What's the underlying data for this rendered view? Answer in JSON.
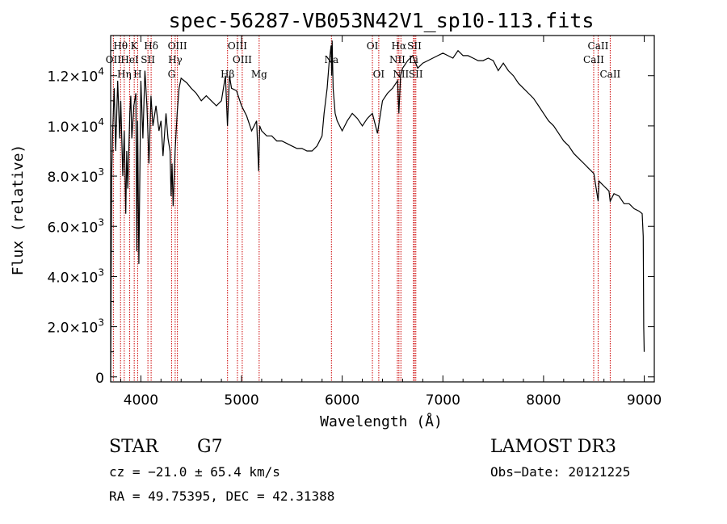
{
  "chart_data": {
    "type": "line",
    "title": "spec-56287-VB053N42V1_sp10-113.fits",
    "xlabel": "Wavelength (Å)",
    "ylabel": "Flux (relative)",
    "xlim": [
      3700,
      9100
    ],
    "ylim": [
      -200,
      13600
    ],
    "xticks": [
      {
        "value": 4000,
        "label": "4000"
      },
      {
        "value": 5000,
        "label": "5000"
      },
      {
        "value": 6000,
        "label": "6000"
      },
      {
        "value": 7000,
        "label": "7000"
      },
      {
        "value": 8000,
        "label": "8000"
      },
      {
        "value": 9000,
        "label": "9000"
      }
    ],
    "yticks": [
      {
        "value": 0,
        "mant": "0",
        "exp": ""
      },
      {
        "value": 2000,
        "mant": "2.0×10",
        "exp": "3"
      },
      {
        "value": 4000,
        "mant": "4.0×10",
        "exp": "3"
      },
      {
        "value": 6000,
        "mant": "6.0×10",
        "exp": "3"
      },
      {
        "value": 8000,
        "mant": "8.0×10",
        "exp": "3"
      },
      {
        "value": 10000,
        "mant": "1.0×10",
        "exp": "4"
      },
      {
        "value": 12000,
        "mant": "1.2×10",
        "exp": "4"
      }
    ],
    "series": [
      {
        "name": "flux",
        "x": [
          3700,
          3710,
          3720,
          3735,
          3750,
          3770,
          3790,
          3800,
          3820,
          3835,
          3850,
          3860,
          3870,
          3890,
          3900,
          3910,
          3930,
          3950,
          3960,
          3968,
          3980,
          4000,
          4020,
          4040,
          4060,
          4080,
          4100,
          4120,
          4150,
          4180,
          4200,
          4220,
          4250,
          4270,
          4290,
          4300,
          4310,
          4320,
          4340,
          4360,
          4380,
          4400,
          4430,
          4460,
          4500,
          4550,
          4600,
          4650,
          4700,
          4750,
          4800,
          4840,
          4860,
          4880,
          4900,
          4950,
          5000,
          5050,
          5100,
          5150,
          5170,
          5180,
          5200,
          5250,
          5300,
          5350,
          5400,
          5450,
          5500,
          5550,
          5600,
          5650,
          5700,
          5750,
          5800,
          5820,
          5850,
          5870,
          5890,
          5895,
          5900,
          5910,
          5930,
          5950,
          6000,
          6050,
          6100,
          6150,
          6200,
          6250,
          6300,
          6350,
          6400,
          6450,
          6500,
          6550,
          6563,
          6580,
          6600,
          6650,
          6700,
          6750,
          6800,
          6850,
          6900,
          6950,
          7000,
          7050,
          7100,
          7150,
          7200,
          7250,
          7300,
          7350,
          7400,
          7450,
          7500,
          7550,
          7600,
          7650,
          7700,
          7750,
          7800,
          7850,
          7900,
          7950,
          8000,
          8050,
          8100,
          8150,
          8200,
          8250,
          8300,
          8350,
          8400,
          8450,
          8500,
          8542,
          8550,
          8600,
          8650,
          8662,
          8700,
          8750,
          8800,
          8850,
          8900,
          8950,
          8980,
          8990,
          8995,
          9000
        ],
        "y": [
          0,
          8000,
          9800,
          11500,
          9000,
          11800,
          9500,
          11000,
          8000,
          9800,
          6500,
          9000,
          7500,
          10500,
          11200,
          9500,
          10800,
          11300,
          5000,
          10200,
          4500,
          11800,
          9500,
          12200,
          10800,
          8500,
          11200,
          10000,
          10800,
          9800,
          10200,
          8800,
          10500,
          9500,
          9000,
          7200,
          8500,
          6800,
          9000,
          10500,
          11500,
          11900,
          11800,
          11700,
          11500,
          11300,
          11000,
          11200,
          11000,
          10800,
          11000,
          12000,
          10000,
          12000,
          11500,
          11400,
          10800,
          10400,
          9800,
          10200,
          8200,
          10000,
          9800,
          9600,
          9600,
          9400,
          9400,
          9300,
          9200,
          9100,
          9100,
          9000,
          9000,
          9200,
          9600,
          10500,
          11500,
          12500,
          13200,
          12000,
          13400,
          11500,
          10500,
          10200,
          9800,
          10200,
          10500,
          10300,
          10000,
          10300,
          10500,
          9700,
          11000,
          11300,
          11500,
          11800,
          10500,
          12000,
          12300,
          12600,
          12800,
          12300,
          12500,
          12600,
          12700,
          12800,
          12900,
          12800,
          12700,
          13000,
          12800,
          12800,
          12700,
          12600,
          12600,
          12700,
          12600,
          12200,
          12500,
          12200,
          12000,
          11700,
          11500,
          11300,
          11100,
          10800,
          10500,
          10200,
          10000,
          9700,
          9400,
          9200,
          8900,
          8700,
          8500,
          8300,
          8100,
          7000,
          7800,
          7600,
          7400,
          7000,
          7300,
          7200,
          6900,
          6900,
          6700,
          6600,
          6500,
          5600,
          2000,
          1000
        ]
      }
    ],
    "lines": [
      {
        "name": "Hθ",
        "x": 3798,
        "row": 0
      },
      {
        "name": "OII",
        "x": 3727,
        "row": 1
      },
      {
        "name": "Hη",
        "x": 3835,
        "row": 2
      },
      {
        "name": "K",
        "x": 3934,
        "row": 0
      },
      {
        "name": "HeI",
        "x": 3889,
        "row": 1
      },
      {
        "name": "SII",
        "x": 4070,
        "row": 1
      },
      {
        "name": "H",
        "x": 3968,
        "row": 2
      },
      {
        "name": "Hδ",
        "x": 4102,
        "row": 0
      },
      {
        "name": "OIII",
        "x": 4363,
        "row": 0
      },
      {
        "name": "Hγ",
        "x": 4341,
        "row": 1
      },
      {
        "name": "G",
        "x": 4305,
        "row": 2
      },
      {
        "name": "Hβ",
        "x": 4861,
        "row": 2
      },
      {
        "name": "OIII",
        "x": 4959,
        "row": 0
      },
      {
        "name": "OIII",
        "x": 5007,
        "row": 1
      },
      {
        "name": "Mg",
        "x": 5175,
        "row": 2
      },
      {
        "name": "Na",
        "x": 5893,
        "row": 1
      },
      {
        "name": "OI",
        "x": 6300,
        "row": 0
      },
      {
        "name": "OI",
        "x": 6363,
        "row": 2
      },
      {
        "name": "Hα",
        "x": 6563,
        "row": 0
      },
      {
        "name": "SII",
        "x": 6717,
        "row": 0
      },
      {
        "name": "NII",
        "x": 6548,
        "row": 1
      },
      {
        "name": "Li",
        "x": 6708,
        "row": 1
      },
      {
        "name": "NII",
        "x": 6583,
        "row": 2
      },
      {
        "name": "SII",
        "x": 6731,
        "row": 2
      },
      {
        "name": "CaII",
        "x": 8542,
        "row": 0
      },
      {
        "name": "CaII",
        "x": 8498,
        "row": 1
      },
      {
        "name": "CaII",
        "x": 8662,
        "row": 2
      }
    ]
  },
  "info": {
    "class": "STAR",
    "subclass": "G7",
    "survey": "LAMOST DR3",
    "cz": "cz = −21.0 ± 65.4 km/s",
    "obs_date": "Obs−Date: 20121225",
    "radec": "RA =  49.75395, DEC =  42.31388"
  },
  "colors": {
    "line_marker": "#cc0000",
    "spectrum": "#000000"
  }
}
